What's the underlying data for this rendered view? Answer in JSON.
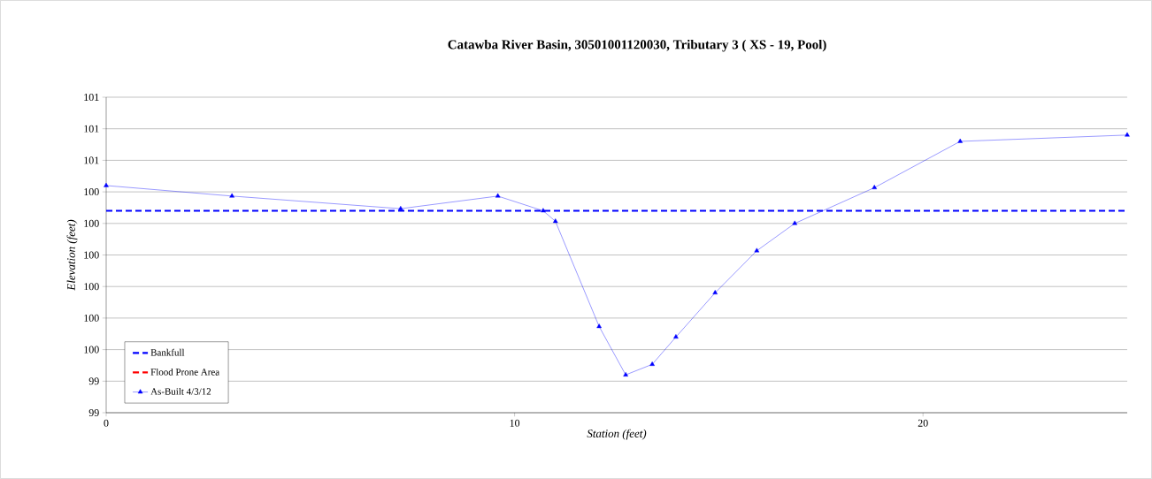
{
  "chart_data": {
    "type": "line",
    "title": "Catawba River Basin, 30501001120030, Tributary 3  ( XS - 19, Pool)",
    "xlabel": "Station (feet)",
    "ylabel": "Elevation (feet)",
    "xlim": [
      0,
      25
    ],
    "xticks": [
      0,
      10,
      20
    ],
    "ylim": [
      99.3,
      100.8
    ],
    "yticks": [
      {
        "value": 99.3,
        "label": "99"
      },
      {
        "value": 99.45,
        "label": "99"
      },
      {
        "value": 99.6,
        "label": "100"
      },
      {
        "value": 99.75,
        "label": "100"
      },
      {
        "value": 99.9,
        "label": "100"
      },
      {
        "value": 100.05,
        "label": "100"
      },
      {
        "value": 100.2,
        "label": "100"
      },
      {
        "value": 100.35,
        "label": "100"
      },
      {
        "value": 100.5,
        "label": "101"
      },
      {
        "value": 100.65,
        "label": "101"
      },
      {
        "value": 100.8,
        "label": "101"
      }
    ],
    "grid": "y",
    "legend": "bottom left",
    "series": [
      {
        "name": "Bankfull",
        "color": "#0000ff",
        "line_style": "dashed",
        "marker": "none",
        "x": [
          0,
          25
        ],
        "values": [
          100.26,
          100.26
        ]
      },
      {
        "name": "Flood Prone Area",
        "color": "#ff0000",
        "line_style": "dashed",
        "marker": "none",
        "values": [
          null,
          null
        ]
      },
      {
        "name": "As-Built 4/3/12",
        "color": "#0000ff",
        "line_style": "solid",
        "marker": "triangle",
        "x": [
          0,
          3.08,
          7.21,
          9.59,
          10.7,
          11.0,
          12.07,
          12.72,
          13.37,
          13.95,
          14.91,
          15.93,
          16.86,
          18.81,
          20.91,
          25.0
        ],
        "values": [
          100.38,
          100.33,
          100.27,
          100.33,
          100.26,
          100.21,
          99.71,
          99.48,
          99.53,
          99.66,
          99.87,
          100.07,
          100.2,
          100.37,
          100.59,
          100.62
        ]
      }
    ]
  }
}
